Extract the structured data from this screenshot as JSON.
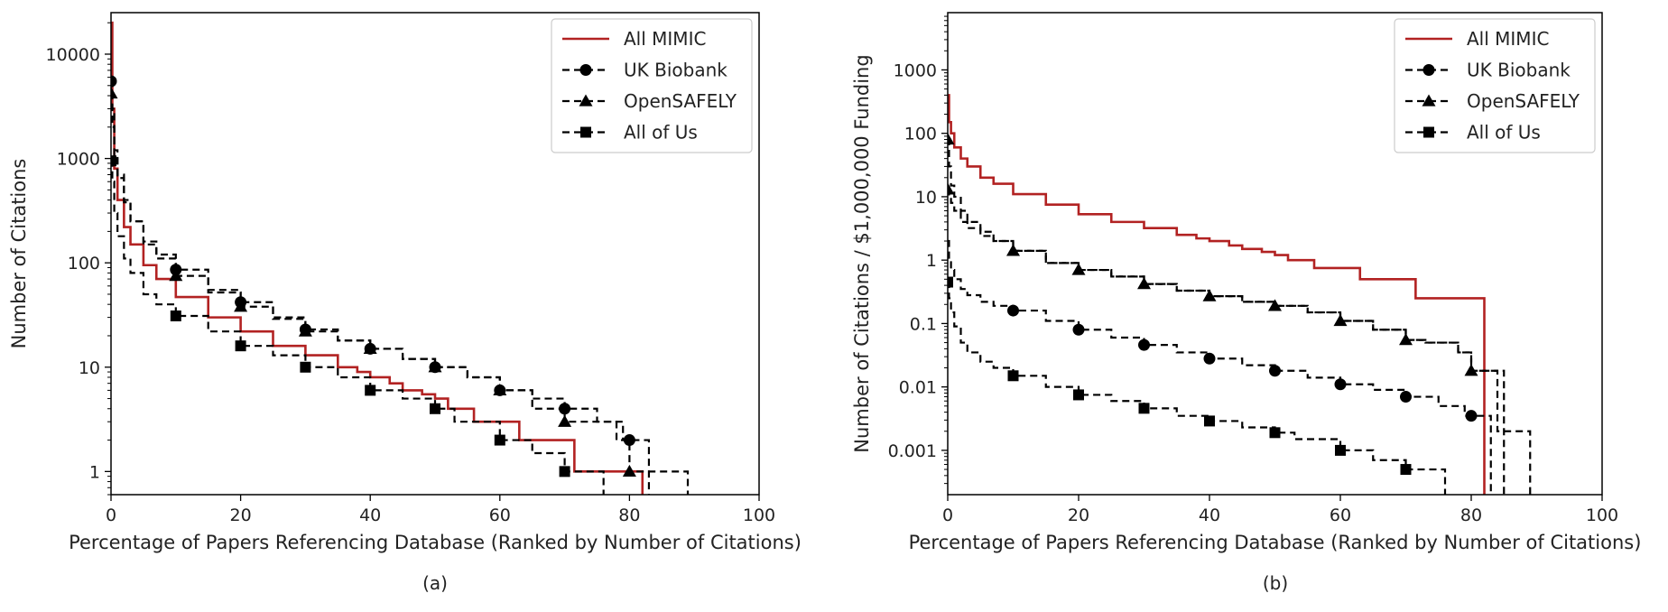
{
  "chart_data": [
    {
      "type": "line",
      "caption": "(a)",
      "xlabel": "Percentage of Papers Referencing Database (Ranked by Number of Citations)",
      "ylabel": "Number of Citations",
      "xlim": [
        0,
        100
      ],
      "ylim": [
        0.6,
        25000
      ],
      "yscale": "log",
      "xticks": [
        0,
        20,
        40,
        60,
        80,
        100
      ],
      "yticks": [
        {
          "v": 1,
          "label": "1"
        },
        {
          "v": 10,
          "label": "10"
        },
        {
          "v": 100,
          "label": "100"
        },
        {
          "v": 1000,
          "label": "1000"
        },
        {
          "v": 10000,
          "label": "10000"
        }
      ],
      "grid": false,
      "legend_position": "top-right",
      "series": [
        {
          "name": "All MIMIC",
          "color": "#b22222",
          "dash": "solid",
          "marker": "none",
          "x": [
            0,
            0.2,
            0.5,
            1,
            2,
            3,
            5,
            7,
            10,
            15,
            20,
            25,
            30,
            35,
            38,
            40,
            43,
            45,
            48,
            50,
            52,
            56,
            63,
            71.5,
            82,
            82
          ],
          "y": [
            20000,
            3000,
            800,
            400,
            220,
            150,
            95,
            70,
            47,
            30,
            22,
            16,
            13,
            10,
            9,
            8,
            7,
            6,
            5.5,
            5,
            4,
            3,
            2,
            1,
            1,
            0.4
          ]
        },
        {
          "name": "UK Biobank",
          "color": "#000000",
          "dash": "dashed",
          "marker": "circle",
          "x": [
            0,
            0.2,
            0.5,
            1,
            2,
            3,
            5,
            7,
            10,
            15,
            20,
            25,
            30,
            35,
            40,
            45,
            50,
            55,
            60,
            65,
            70,
            72,
            75,
            79,
            80,
            83,
            83
          ],
          "y": [
            5500,
            3000,
            1200,
            700,
            400,
            250,
            160,
            120,
            86,
            55,
            42,
            30,
            23,
            18,
            15,
            12,
            10,
            8,
            6,
            5,
            4,
            4,
            3,
            2,
            2,
            2,
            0.4
          ],
          "markers_x": [
            0,
            10,
            20,
            30,
            40,
            50,
            60,
            70,
            80
          ],
          "markers_y": [
            5500,
            86,
            42,
            23,
            15,
            10,
            6,
            4,
            2
          ]
        },
        {
          "name": "OpenSAFELY",
          "color": "#000000",
          "dash": "dashed",
          "marker": "triangle",
          "x": [
            0,
            0.2,
            0.5,
            1,
            2,
            3,
            5,
            7,
            10,
            15,
            20,
            25,
            30,
            35,
            40,
            45,
            50,
            55,
            60,
            65,
            70,
            73,
            78,
            80,
            82,
            89,
            89
          ],
          "y": [
            4200,
            2000,
            1000,
            650,
            380,
            250,
            150,
            110,
            75,
            52,
            38,
            29,
            22,
            18,
            15,
            12,
            10,
            8,
            6,
            4,
            3,
            3,
            2,
            1,
            1,
            1,
            0.4
          ],
          "markers_x": [
            0,
            10,
            20,
            30,
            40,
            50,
            60,
            70,
            80
          ],
          "markers_y": [
            4200,
            75,
            38,
            22,
            15,
            10,
            6,
            3,
            1
          ]
        },
        {
          "name": "All of Us",
          "color": "#000000",
          "dash": "dashed",
          "marker": "square",
          "x": [
            0,
            0.2,
            0.5,
            1,
            2,
            3,
            5,
            7,
            10,
            15,
            20,
            25,
            30,
            35,
            40,
            45,
            50,
            53,
            60,
            65,
            70,
            72,
            76,
            76
          ],
          "y": [
            950,
            600,
            300,
            180,
            110,
            80,
            50,
            40,
            31,
            22,
            16,
            13,
            10,
            8,
            6,
            5,
            4,
            3,
            2,
            1.5,
            1,
            1,
            1,
            0.4
          ],
          "markers_x": [
            0,
            10,
            20,
            30,
            40,
            50,
            60,
            70
          ],
          "markers_y": [
            950,
            31,
            16,
            10,
            6,
            4,
            2,
            1
          ]
        }
      ]
    },
    {
      "type": "line",
      "caption": "(b)",
      "xlabel": "Percentage of Papers Referencing Database (Ranked by Number of Citations)",
      "ylabel": "Number of Citations / $1,000,000 Funding",
      "xlim": [
        0,
        100
      ],
      "ylim": [
        0.0002,
        8000
      ],
      "yscale": "log",
      "xticks": [
        0,
        20,
        40,
        60,
        80,
        100
      ],
      "yticks": [
        {
          "v": 0.001,
          "label": "0.001"
        },
        {
          "v": 0.01,
          "label": "0.01"
        },
        {
          "v": 0.1,
          "label": "0.1"
        },
        {
          "v": 1,
          "label": "1"
        },
        {
          "v": 10,
          "label": "10"
        },
        {
          "v": 100,
          "label": "100"
        },
        {
          "v": 1000,
          "label": "1000"
        }
      ],
      "grid": false,
      "legend_position": "top-right",
      "series": [
        {
          "name": "All MIMIC",
          "color": "#b22222",
          "dash": "solid",
          "marker": "none",
          "x": [
            0,
            0.2,
            0.5,
            1,
            2,
            3,
            5,
            7,
            10,
            15,
            20,
            25,
            30,
            35,
            38,
            40,
            43,
            45,
            48,
            50,
            52,
            56,
            63,
            71.5,
            82,
            82
          ],
          "y": [
            400,
            150,
            100,
            60,
            40,
            30,
            20,
            16,
            11,
            7.5,
            5.3,
            4,
            3.2,
            2.5,
            2.2,
            2,
            1.7,
            1.5,
            1.35,
            1.2,
            1,
            0.75,
            0.5,
            0.25,
            0.25,
            0.0001
          ]
        },
        {
          "name": "UK Biobank",
          "color": "#000000",
          "dash": "dashed",
          "marker": "circle",
          "x": [
            0,
            0.2,
            0.5,
            1,
            2,
            3,
            5,
            7,
            10,
            15,
            20,
            25,
            30,
            35,
            40,
            45,
            50,
            55,
            60,
            65,
            70,
            72,
            75,
            79,
            80,
            83,
            83
          ],
          "y": [
            2,
            1,
            0.7,
            0.5,
            0.35,
            0.28,
            0.22,
            0.19,
            0.16,
            0.11,
            0.08,
            0.06,
            0.046,
            0.035,
            0.028,
            0.022,
            0.018,
            0.014,
            0.011,
            0.009,
            0.007,
            0.007,
            0.005,
            0.0035,
            0.0035,
            0.0035,
            0.0001
          ],
          "markers_x": [
            10,
            20,
            30,
            40,
            50,
            60,
            70,
            80
          ],
          "markers_y": [
            0.16,
            0.08,
            0.046,
            0.028,
            0.018,
            0.011,
            0.007,
            0.0035
          ]
        },
        {
          "name": "OpenSAFELY",
          "color": "#000000",
          "dash": "dashed",
          "marker": "triangle",
          "x": [
            0,
            0.2,
            0.5,
            1,
            2,
            3,
            5,
            7,
            10,
            15,
            20,
            25,
            30,
            35,
            40,
            45,
            50,
            55,
            60,
            65,
            70,
            73,
            78,
            80,
            82,
            85,
            85
          ],
          "y": [
            80,
            30,
            15,
            10,
            6,
            4,
            2.8,
            2,
            1.4,
            0.9,
            0.7,
            0.55,
            0.42,
            0.33,
            0.27,
            0.22,
            0.19,
            0.15,
            0.11,
            0.08,
            0.055,
            0.05,
            0.035,
            0.018,
            0.018,
            0.018,
            0.0001
          ],
          "markers_x": [
            0,
            10,
            20,
            30,
            40,
            50,
            60,
            70,
            80
          ],
          "markers_y": [
            80,
            1.4,
            0.7,
            0.42,
            0.27,
            0.19,
            0.11,
            0.055,
            0.018
          ]
        },
        {
          "name": "",
          "color": "#000000",
          "dash": "dashed",
          "marker": "triangle",
          "x": [
            0,
            0.2,
            0.5,
            1,
            2,
            3,
            5,
            7,
            10,
            15,
            20,
            25,
            30,
            35,
            40,
            45,
            50,
            55,
            60,
            65,
            70,
            73,
            78,
            80,
            82,
            84,
            84,
            89,
            89
          ],
          "y": [
            13,
            10,
            8,
            6,
            4,
            3.2,
            2.4,
            2,
            1.4,
            0.9,
            0.7,
            0.55,
            0.42,
            0.33,
            0.27,
            0.22,
            0.19,
            0.15,
            0.11,
            0.08,
            0.055,
            0.05,
            0.035,
            0.018,
            0.018,
            0.018,
            0.002,
            0.002,
            0.0001
          ],
          "markers_x": [
            0
          ],
          "markers_y": [
            13
          ]
        },
        {
          "name": "All of Us",
          "color": "#000000",
          "dash": "dashed",
          "marker": "square",
          "x": [
            0,
            0.2,
            0.5,
            1,
            2,
            3,
            5,
            7,
            10,
            15,
            20,
            25,
            30,
            35,
            40,
            45,
            50,
            53,
            60,
            65,
            70,
            72,
            76,
            76
          ],
          "y": [
            0.45,
            0.25,
            0.15,
            0.09,
            0.05,
            0.035,
            0.025,
            0.02,
            0.015,
            0.01,
            0.0075,
            0.006,
            0.0046,
            0.0035,
            0.0029,
            0.0023,
            0.0019,
            0.0015,
            0.001,
            0.0007,
            0.0005,
            0.0005,
            0.0005,
            0.0001
          ],
          "markers_x": [
            0,
            10,
            20,
            30,
            40,
            50,
            60,
            70
          ],
          "markers_y": [
            0.45,
            0.015,
            0.0075,
            0.0046,
            0.0029,
            0.0019,
            0.001,
            0.0005
          ]
        }
      ]
    }
  ]
}
